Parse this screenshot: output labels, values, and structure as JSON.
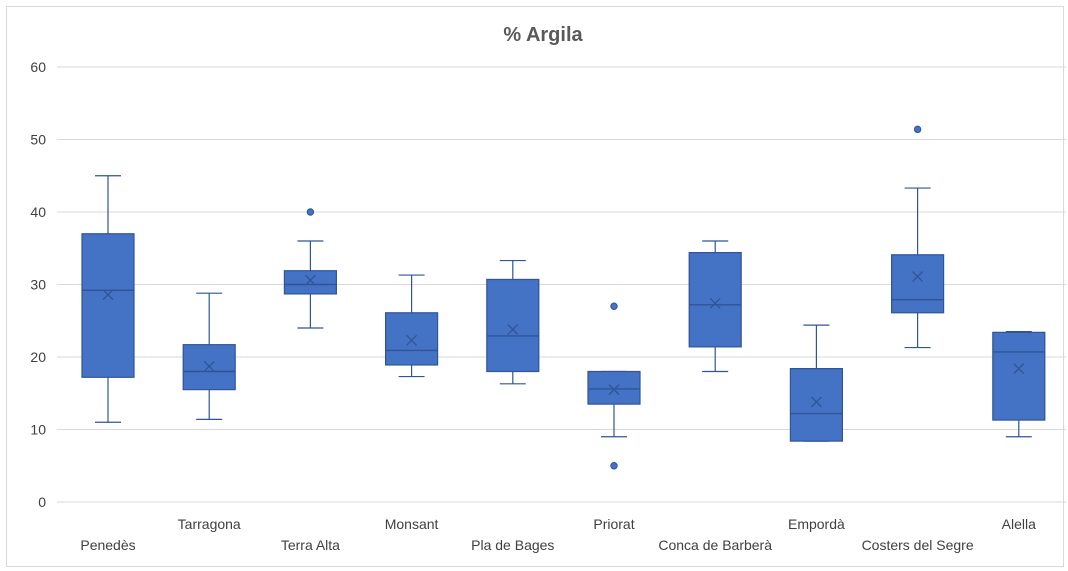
{
  "chart_data": {
    "type": "box",
    "title": "% Argila",
    "xlabel": "",
    "ylabel": "",
    "ylim": [
      0,
      60
    ],
    "yticks": [
      0,
      10,
      20,
      30,
      40,
      50,
      60
    ],
    "grid": true,
    "legend": "none",
    "colors": {
      "box": "#4472c4",
      "stroke": "#2f5597"
    },
    "categories": [
      "Penedès",
      "Tarragona",
      "Terra Alta",
      "Monsant",
      "Pla de Bages",
      "Priorat",
      "Conca de Barberà",
      "Empordà",
      "Costers del Segre",
      "Alella"
    ],
    "boxes": [
      {
        "min": 11.0,
        "q1": 17.2,
        "median": 29.2,
        "q3": 37.0,
        "max": 45.0,
        "mean": 28.6,
        "outliers": []
      },
      {
        "min": 11.4,
        "q1": 15.5,
        "median": 18.0,
        "q3": 21.7,
        "max": 28.8,
        "mean": 18.7,
        "outliers": []
      },
      {
        "min": 24.0,
        "q1": 28.7,
        "median": 30.0,
        "q3": 31.9,
        "max": 36.0,
        "mean": 30.6,
        "outliers": [
          40.0
        ]
      },
      {
        "min": 17.3,
        "q1": 18.9,
        "median": 20.9,
        "q3": 26.1,
        "max": 31.3,
        "mean": 22.3,
        "outliers": []
      },
      {
        "min": 16.3,
        "q1": 18.0,
        "median": 22.9,
        "q3": 30.7,
        "max": 33.3,
        "mean": 23.8,
        "outliers": []
      },
      {
        "min": 9.0,
        "q1": 13.5,
        "median": 15.6,
        "q3": 18.0,
        "max": 18.0,
        "mean": 15.5,
        "outliers": [
          27.0,
          5.0
        ]
      },
      {
        "min": 18.0,
        "q1": 21.4,
        "median": 27.2,
        "q3": 34.4,
        "max": 36.0,
        "mean": 27.4,
        "outliers": []
      },
      {
        "min": 8.4,
        "q1": 8.4,
        "median": 12.2,
        "q3": 18.4,
        "max": 24.4,
        "mean": 13.8,
        "outliers": []
      },
      {
        "min": 21.3,
        "q1": 26.1,
        "median": 27.9,
        "q3": 34.1,
        "max": 43.3,
        "mean": 31.1,
        "outliers": [
          51.4
        ]
      },
      {
        "min": 9.0,
        "q1": 11.3,
        "median": 20.7,
        "q3": 23.4,
        "max": 23.5,
        "mean": 18.4,
        "outliers": []
      }
    ]
  }
}
